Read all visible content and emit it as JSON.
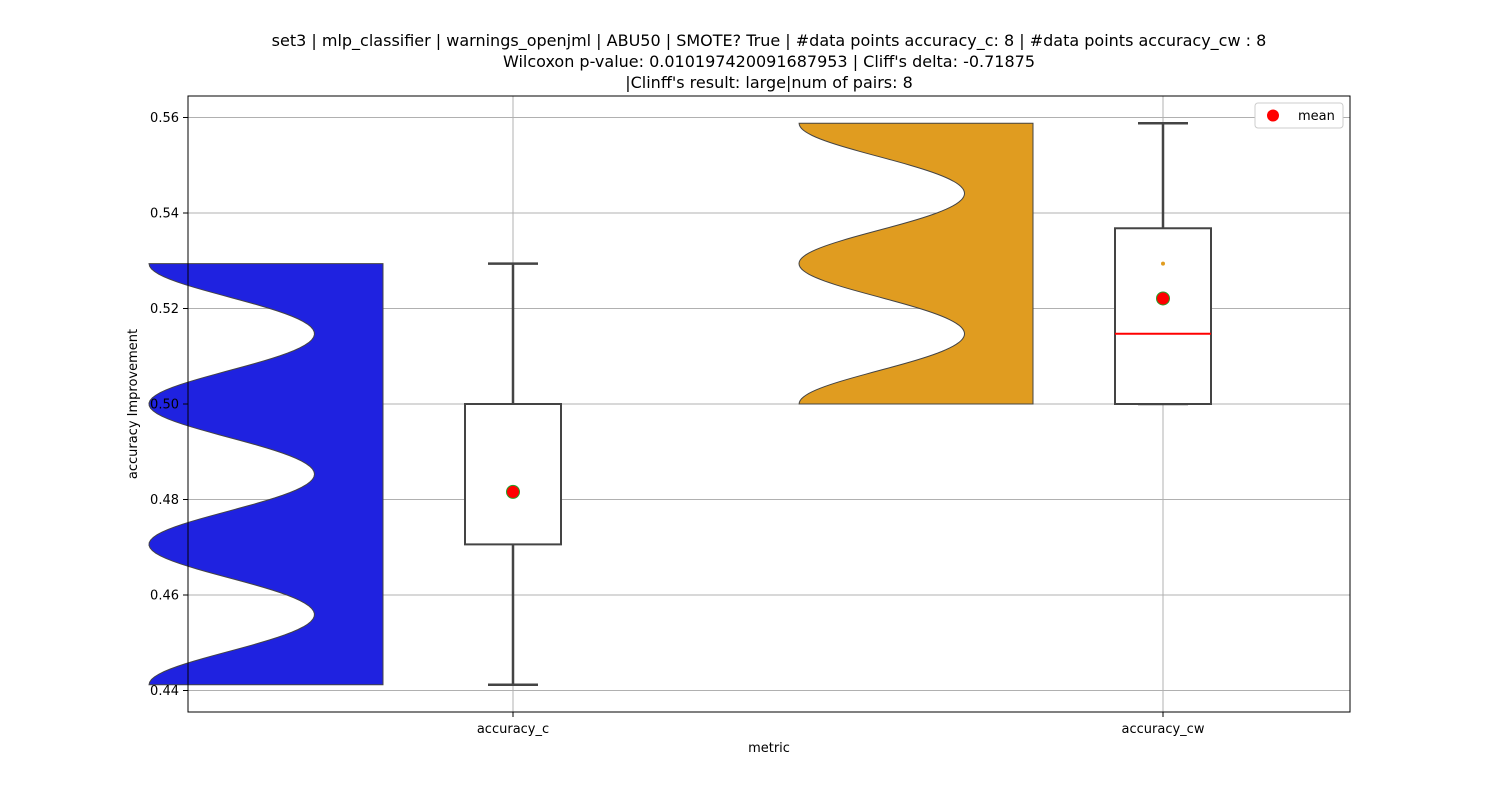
{
  "chart_data": {
    "type": "violin",
    "title_lines": [
      "set3 | mlp_classifier | warnings_openjml | ABU50 | SMOTE? True | #data points accuracy_c: 8 | #data points accuracy_cw : 8",
      "Wilcoxon p-value: 0.010197420091687953 | Cliff's delta: -0.71875",
      "|Clinff's result: large|num of pairs: 8"
    ],
    "xlabel": "metric",
    "ylabel": "accuracy Improvement",
    "ylim": [
      0.4355,
      0.5645
    ],
    "yticks": [
      0.44,
      0.46,
      0.48,
      0.5,
      0.52,
      0.54,
      0.56
    ],
    "ytick_labels": [
      "0.44",
      "0.46",
      "0.48",
      "0.50",
      "0.52",
      "0.54",
      "0.56"
    ],
    "categories": [
      "accuracy_c",
      "accuracy_cw"
    ],
    "grid": true,
    "legend": {
      "position": "top-right",
      "entries": [
        {
          "label": "mean",
          "color": "#ff0000"
        }
      ]
    },
    "series": [
      {
        "category": "accuracy_c",
        "violin_color": "#1f22e0",
        "violin_range": [
          0.4412,
          0.5294
        ],
        "density_peaks": [
          0.4706,
          0.5,
          0.5294,
          0.4412
        ],
        "box": {
          "whisker_low": 0.4412,
          "q1": 0.4706,
          "median": 0.5,
          "q3": 0.5,
          "whisker_high": 0.5294
        },
        "mean": 0.4816
      },
      {
        "category": "accuracy_cw",
        "violin_color": "#e09c20",
        "violin_range": [
          0.5,
          0.5588
        ],
        "density_peaks": [
          0.5,
          0.5294,
          0.5588
        ],
        "box": {
          "whisker_low": 0.5,
          "q1": 0.5,
          "median": 0.5147,
          "q3": 0.5368,
          "whisker_high": 0.5588
        },
        "mean": 0.5221,
        "outliers": [
          0.5294
        ]
      }
    ]
  }
}
